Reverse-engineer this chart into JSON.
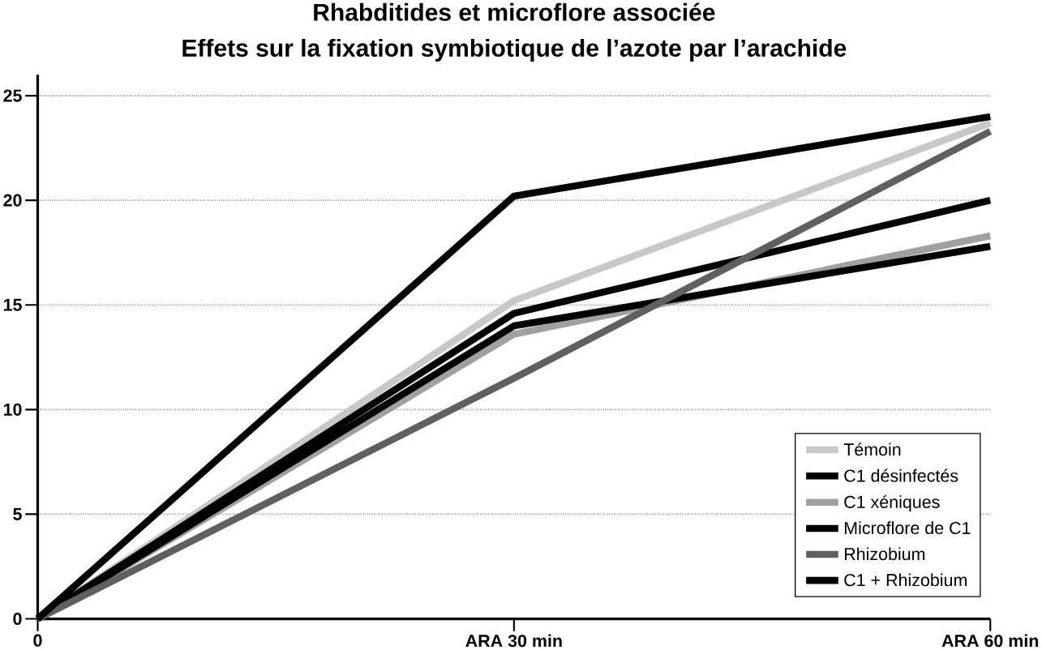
{
  "chart_data": {
    "type": "line",
    "title": "Rhabditides et microflore associée",
    "subtitle": "Effets sur la fixation symbiotique de l’azote par l’arachide",
    "categories": [
      "0",
      "ARA 30 min",
      "ARA 60 min"
    ],
    "series": [
      {
        "name": "Témoin",
        "color": "#c8c8c8",
        "values": [
          0,
          15.2,
          23.7
        ]
      },
      {
        "name": "C1 désinfectés",
        "color": "#000000",
        "values": [
          0,
          14.6,
          20.0
        ]
      },
      {
        "name": "C1 xéniques",
        "color": "#a0a0a0",
        "values": [
          0,
          13.6,
          18.3
        ]
      },
      {
        "name": "Microflore de C1",
        "color": "#000000",
        "values": [
          0,
          14.0,
          17.8
        ]
      },
      {
        "name": "Rhizobium",
        "color": "#606060",
        "values": [
          0,
          11.5,
          23.3
        ]
      },
      {
        "name": "C1 + Rhizobium",
        "color": "#000000",
        "values": [
          0,
          20.2,
          24.0
        ]
      }
    ],
    "ylim": [
      0,
      26
    ],
    "yticks": [
      0,
      5,
      10,
      15,
      20,
      25
    ],
    "grid": "y",
    "legend": "bottom right",
    "marker": "none",
    "line_style": "solid"
  }
}
